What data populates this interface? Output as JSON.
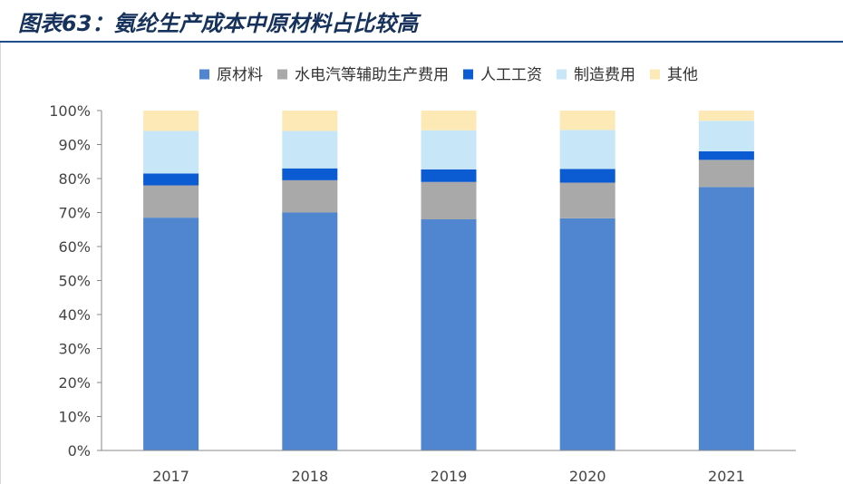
{
  "title": "图表63：氨纶生产成本中原材料占比较高",
  "colors": {
    "title": "#16325c",
    "rule": "#1f4e8c"
  },
  "chart_data": {
    "type": "bar",
    "stacked": true,
    "percent": true,
    "categories": [
      "2017",
      "2018",
      "2019",
      "2020",
      "2021"
    ],
    "ylim": [
      0,
      100
    ],
    "yticks": [
      "0%",
      "10%",
      "20%",
      "30%",
      "40%",
      "50%",
      "60%",
      "70%",
      "80%",
      "90%",
      "100%"
    ],
    "legend_position": "top",
    "grid": false,
    "series": [
      {
        "name": "原材料",
        "color": "#4f86cf",
        "values": [
          68.5,
          70.0,
          68.0,
          68.3,
          77.5
        ]
      },
      {
        "name": "水电汽等辅助生产费用",
        "color": "#a9a9a9",
        "values": [
          9.5,
          9.5,
          11.0,
          10.5,
          8.0
        ]
      },
      {
        "name": "人工工资",
        "color": "#0b5bd3",
        "values": [
          3.5,
          3.5,
          3.7,
          4.0,
          2.5
        ]
      },
      {
        "name": "制造费用",
        "color": "#c7e6f7",
        "values": [
          12.5,
          11.0,
          11.5,
          11.5,
          9.0
        ]
      },
      {
        "name": "其他",
        "color": "#fde9b5",
        "values": [
          6.0,
          6.0,
          5.8,
          5.7,
          3.0
        ]
      }
    ]
  }
}
